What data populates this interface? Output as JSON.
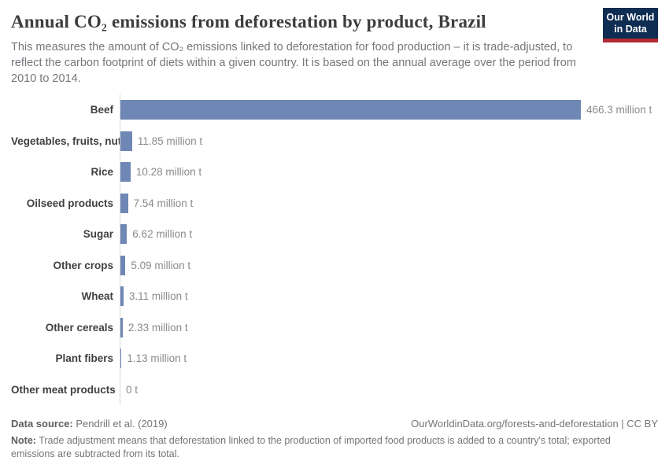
{
  "header": {
    "title": "Annual CO₂ emissions from deforestation by product, Brazil",
    "subtitle": "This measures the amount of CO₂ emissions linked to deforestation for food production – it is trade-adjusted, to reflect the carbon footprint of diets within a given country. It is based on the annual average over the period from 2010 to 2014.",
    "logo": {
      "line1": "Our World",
      "line2": "in Data",
      "bg_color": "#0f2c52",
      "accent_color": "#b22a33"
    }
  },
  "chart_data": {
    "type": "bar",
    "orientation": "horizontal",
    "title": "Annual CO₂ emissions from deforestation by product, Brazil",
    "unit": "million t",
    "categories": [
      "Beef",
      "Vegetables, fruits, nuts",
      "Rice",
      "Oilseed products",
      "Sugar",
      "Other crops",
      "Wheat",
      "Other cereals",
      "Plant fibers",
      "Other meat products"
    ],
    "values": [
      466.3,
      11.85,
      10.28,
      7.54,
      6.62,
      5.09,
      3.11,
      2.33,
      1.13,
      0
    ],
    "value_labels": [
      "466.3 million t",
      "11.85 million t",
      "10.28 million t",
      "7.54 million t",
      "6.62 million t",
      "5.09 million t",
      "3.11 million t",
      "2.33 million t",
      "1.13 million t",
      "0 t"
    ],
    "xlim": [
      0,
      466.3
    ],
    "bar_color": "#6e87b4",
    "grid": false,
    "legend": false
  },
  "footer": {
    "source_label": "Data source:",
    "source_text": " Pendrill et al. (2019)",
    "attribution": "OurWorldinData.org/forests-and-deforestation | CC BY",
    "note_label": "Note:",
    "note_text": " Trade adjustment means that deforestation linked to the production of imported food products is added to a country's total; exported emissions are subtracted from its total."
  }
}
